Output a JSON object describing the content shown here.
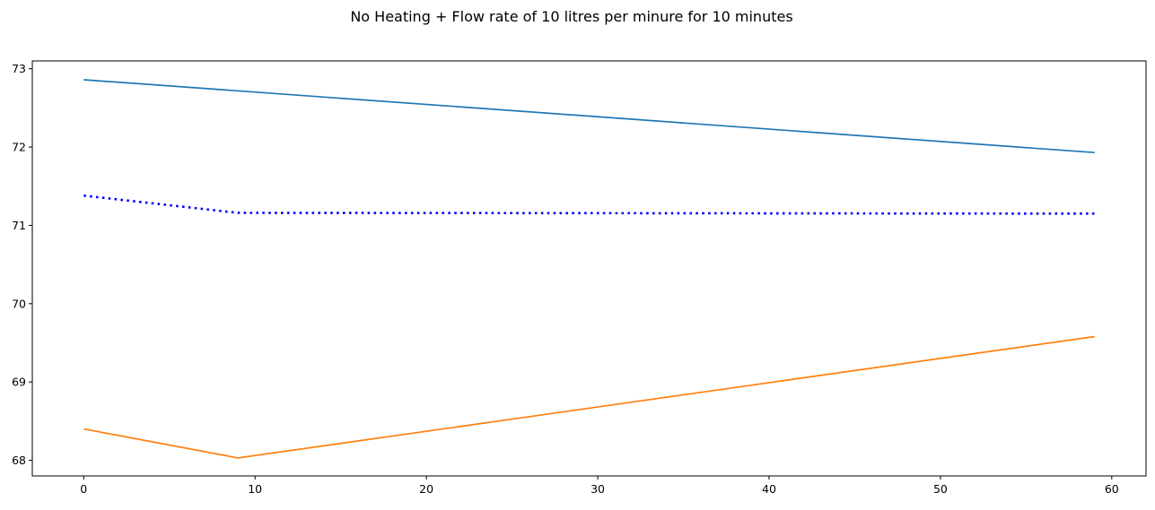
{
  "chart_data": {
    "type": "line",
    "title": "No Heating + Flow rate of 10 litres per minure for 10 minutes",
    "xlabel": "",
    "ylabel": "",
    "xlim": [
      -3,
      62
    ],
    "ylim": [
      67.8,
      73.1
    ],
    "x_ticks": [
      0,
      10,
      20,
      30,
      40,
      50,
      60
    ],
    "x_tick_labels": [
      "0",
      "10",
      "20",
      "30",
      "40",
      "50",
      "60"
    ],
    "y_ticks": [
      68,
      69,
      70,
      71,
      72,
      73
    ],
    "y_tick_labels": [
      "68",
      "69",
      "70",
      "71",
      "72",
      "73"
    ],
    "grid": false,
    "legend": "none",
    "series": [
      {
        "color": "#1f77b4",
        "style": "solid",
        "x": [
          0,
          59
        ],
        "values": [
          72.86,
          71.93
        ]
      },
      {
        "color": "#0000ff",
        "style": "dotted",
        "x": [
          0,
          9,
          59
        ],
        "values": [
          71.38,
          71.16,
          71.15
        ]
      },
      {
        "color": "#ff7f0e",
        "style": "solid",
        "x": [
          0,
          9,
          59
        ],
        "values": [
          68.4,
          68.03,
          69.58
        ]
      }
    ]
  }
}
